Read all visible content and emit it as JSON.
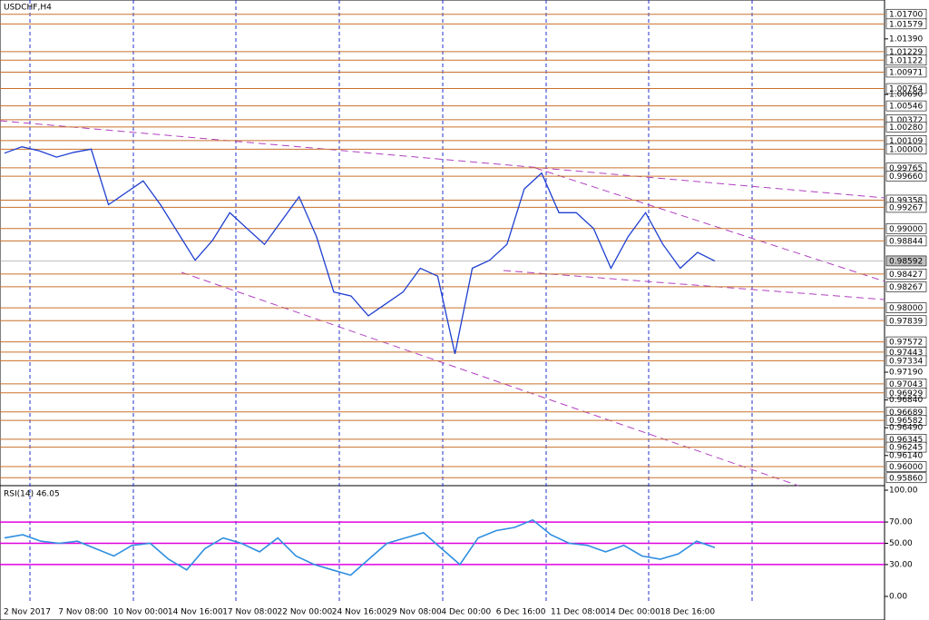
{
  "chart_data": [
    {
      "type": "line",
      "title": "USDCHF,H4",
      "series": [
        {
          "name": "USDCHF",
          "color": "#1f3fd0",
          "values": [
            0.9995,
            1.0003,
            0.9998,
            0.999,
            0.9996,
            1.0,
            0.993,
            0.9945,
            0.996,
            0.993,
            0.9895,
            0.986,
            0.9885,
            0.992,
            0.99,
            0.988,
            0.991,
            0.994,
            0.989,
            0.982,
            0.9815,
            0.979,
            0.9805,
            0.982,
            0.985,
            0.984,
            0.9742,
            0.985,
            0.986,
            0.988,
            0.995,
            0.997,
            0.992,
            0.992,
            0.99,
            0.985,
            0.989,
            0.992,
            0.988,
            0.985,
            0.987,
            0.9859
          ]
        }
      ],
      "ylim": [
        0.9576,
        1.0188
      ],
      "level_color": "#c8702c",
      "levels": [
        {
          "value": 1.017,
          "label": "1.01700"
        },
        {
          "value": 1.01579,
          "label": "1.01579"
        },
        {
          "value": 1.01229,
          "label": "1.01229"
        },
        {
          "value": 1.01122,
          "label": "1.01122"
        },
        {
          "value": 1.00971,
          "label": "1.00971"
        },
        {
          "value": 1.00764,
          "label": "1.00764"
        },
        {
          "value": 1.00546,
          "label": "1.00546"
        },
        {
          "value": 1.00372,
          "label": "1.00372"
        },
        {
          "value": 1.0028,
          "label": "1.00280"
        },
        {
          "value": 1.00109,
          "label": "1.00109"
        },
        {
          "value": 1.0,
          "label": "1.00000"
        },
        {
          "value": 0.99765,
          "label": "0.99765"
        },
        {
          "value": 0.9966,
          "label": "0.99660"
        },
        {
          "value": 0.99358,
          "label": "0.99358"
        },
        {
          "value": 0.99267,
          "label": "0.99267"
        },
        {
          "value": 0.99,
          "label": "0.99000"
        },
        {
          "value": 0.98844,
          "label": "0.98844"
        },
        {
          "value": 0.98427,
          "label": "0.98427"
        },
        {
          "value": 0.98267,
          "label": "0.98267"
        },
        {
          "value": 0.98,
          "label": "0.98000"
        },
        {
          "value": 0.97839,
          "label": "0.97839"
        },
        {
          "value": 0.97572,
          "label": "0.97572"
        },
        {
          "value": 0.97443,
          "label": "0.97443"
        },
        {
          "value": 0.97334,
          "label": "0.97334"
        },
        {
          "value": 0.97043,
          "label": "0.97043"
        },
        {
          "value": 0.96929,
          "label": "0.96929"
        },
        {
          "value": 0.96689,
          "label": "0.96689"
        },
        {
          "value": 0.96582,
          "label": "0.96582"
        },
        {
          "value": 0.96345,
          "label": "0.96345"
        },
        {
          "value": 0.96245,
          "label": "0.96245"
        },
        {
          "value": 0.96,
          "label": "0.96000"
        },
        {
          "value": 0.9586,
          "label": "0.95860"
        }
      ],
      "yticks": [
        {
          "value": 1.0139,
          "label": "1.01390"
        },
        {
          "value": 1.0069,
          "label": "1.00690"
        },
        {
          "value": 0.9719,
          "label": "0.97190"
        },
        {
          "value": 0.9684,
          "label": "0.96840"
        },
        {
          "value": 0.9649,
          "label": "0.96490"
        },
        {
          "value": 0.9614,
          "label": "0.96140"
        }
      ],
      "current_price": {
        "value": 0.98592,
        "label": "0.98592"
      },
      "x_labels": [
        "2 Nov 2017",
        "7 Nov 08:00",
        "10 Nov 00:00",
        "14 Nov 16:00",
        "17 Nov 08:00",
        "22 Nov 00:00",
        "24 Nov 16:00",
        "29 Nov 08:00",
        "4 Dec 00:00",
        "6 Dec 16:00",
        "11 Dec 08:00",
        "14 Dec 00:00",
        "18 Dec 16:00"
      ]
    },
    {
      "type": "line",
      "title": "RSI(14) 46.05",
      "series": [
        {
          "name": "RSI(14)",
          "color": "#2f8fe0",
          "values": [
            55,
            58,
            52,
            50,
            52,
            45,
            38,
            48,
            50,
            35,
            25,
            45,
            55,
            50,
            42,
            55,
            38,
            30,
            25,
            20,
            35,
            50,
            55,
            60,
            45,
            30,
            55,
            62,
            65,
            72,
            58,
            50,
            48,
            42,
            48,
            38,
            35,
            40,
            52,
            46
          ]
        }
      ],
      "ylim": [
        0,
        100
      ],
      "levels": [
        70,
        50,
        30
      ],
      "level_color": "#e000e0",
      "yticks": [
        {
          "value": 100,
          "label": "100.00"
        },
        {
          "value": 70,
          "label": "70.00"
        },
        {
          "value": 50,
          "label": "50.00"
        },
        {
          "value": 30,
          "label": "30.00"
        },
        {
          "value": 0,
          "label": "0.00"
        }
      ]
    }
  ]
}
